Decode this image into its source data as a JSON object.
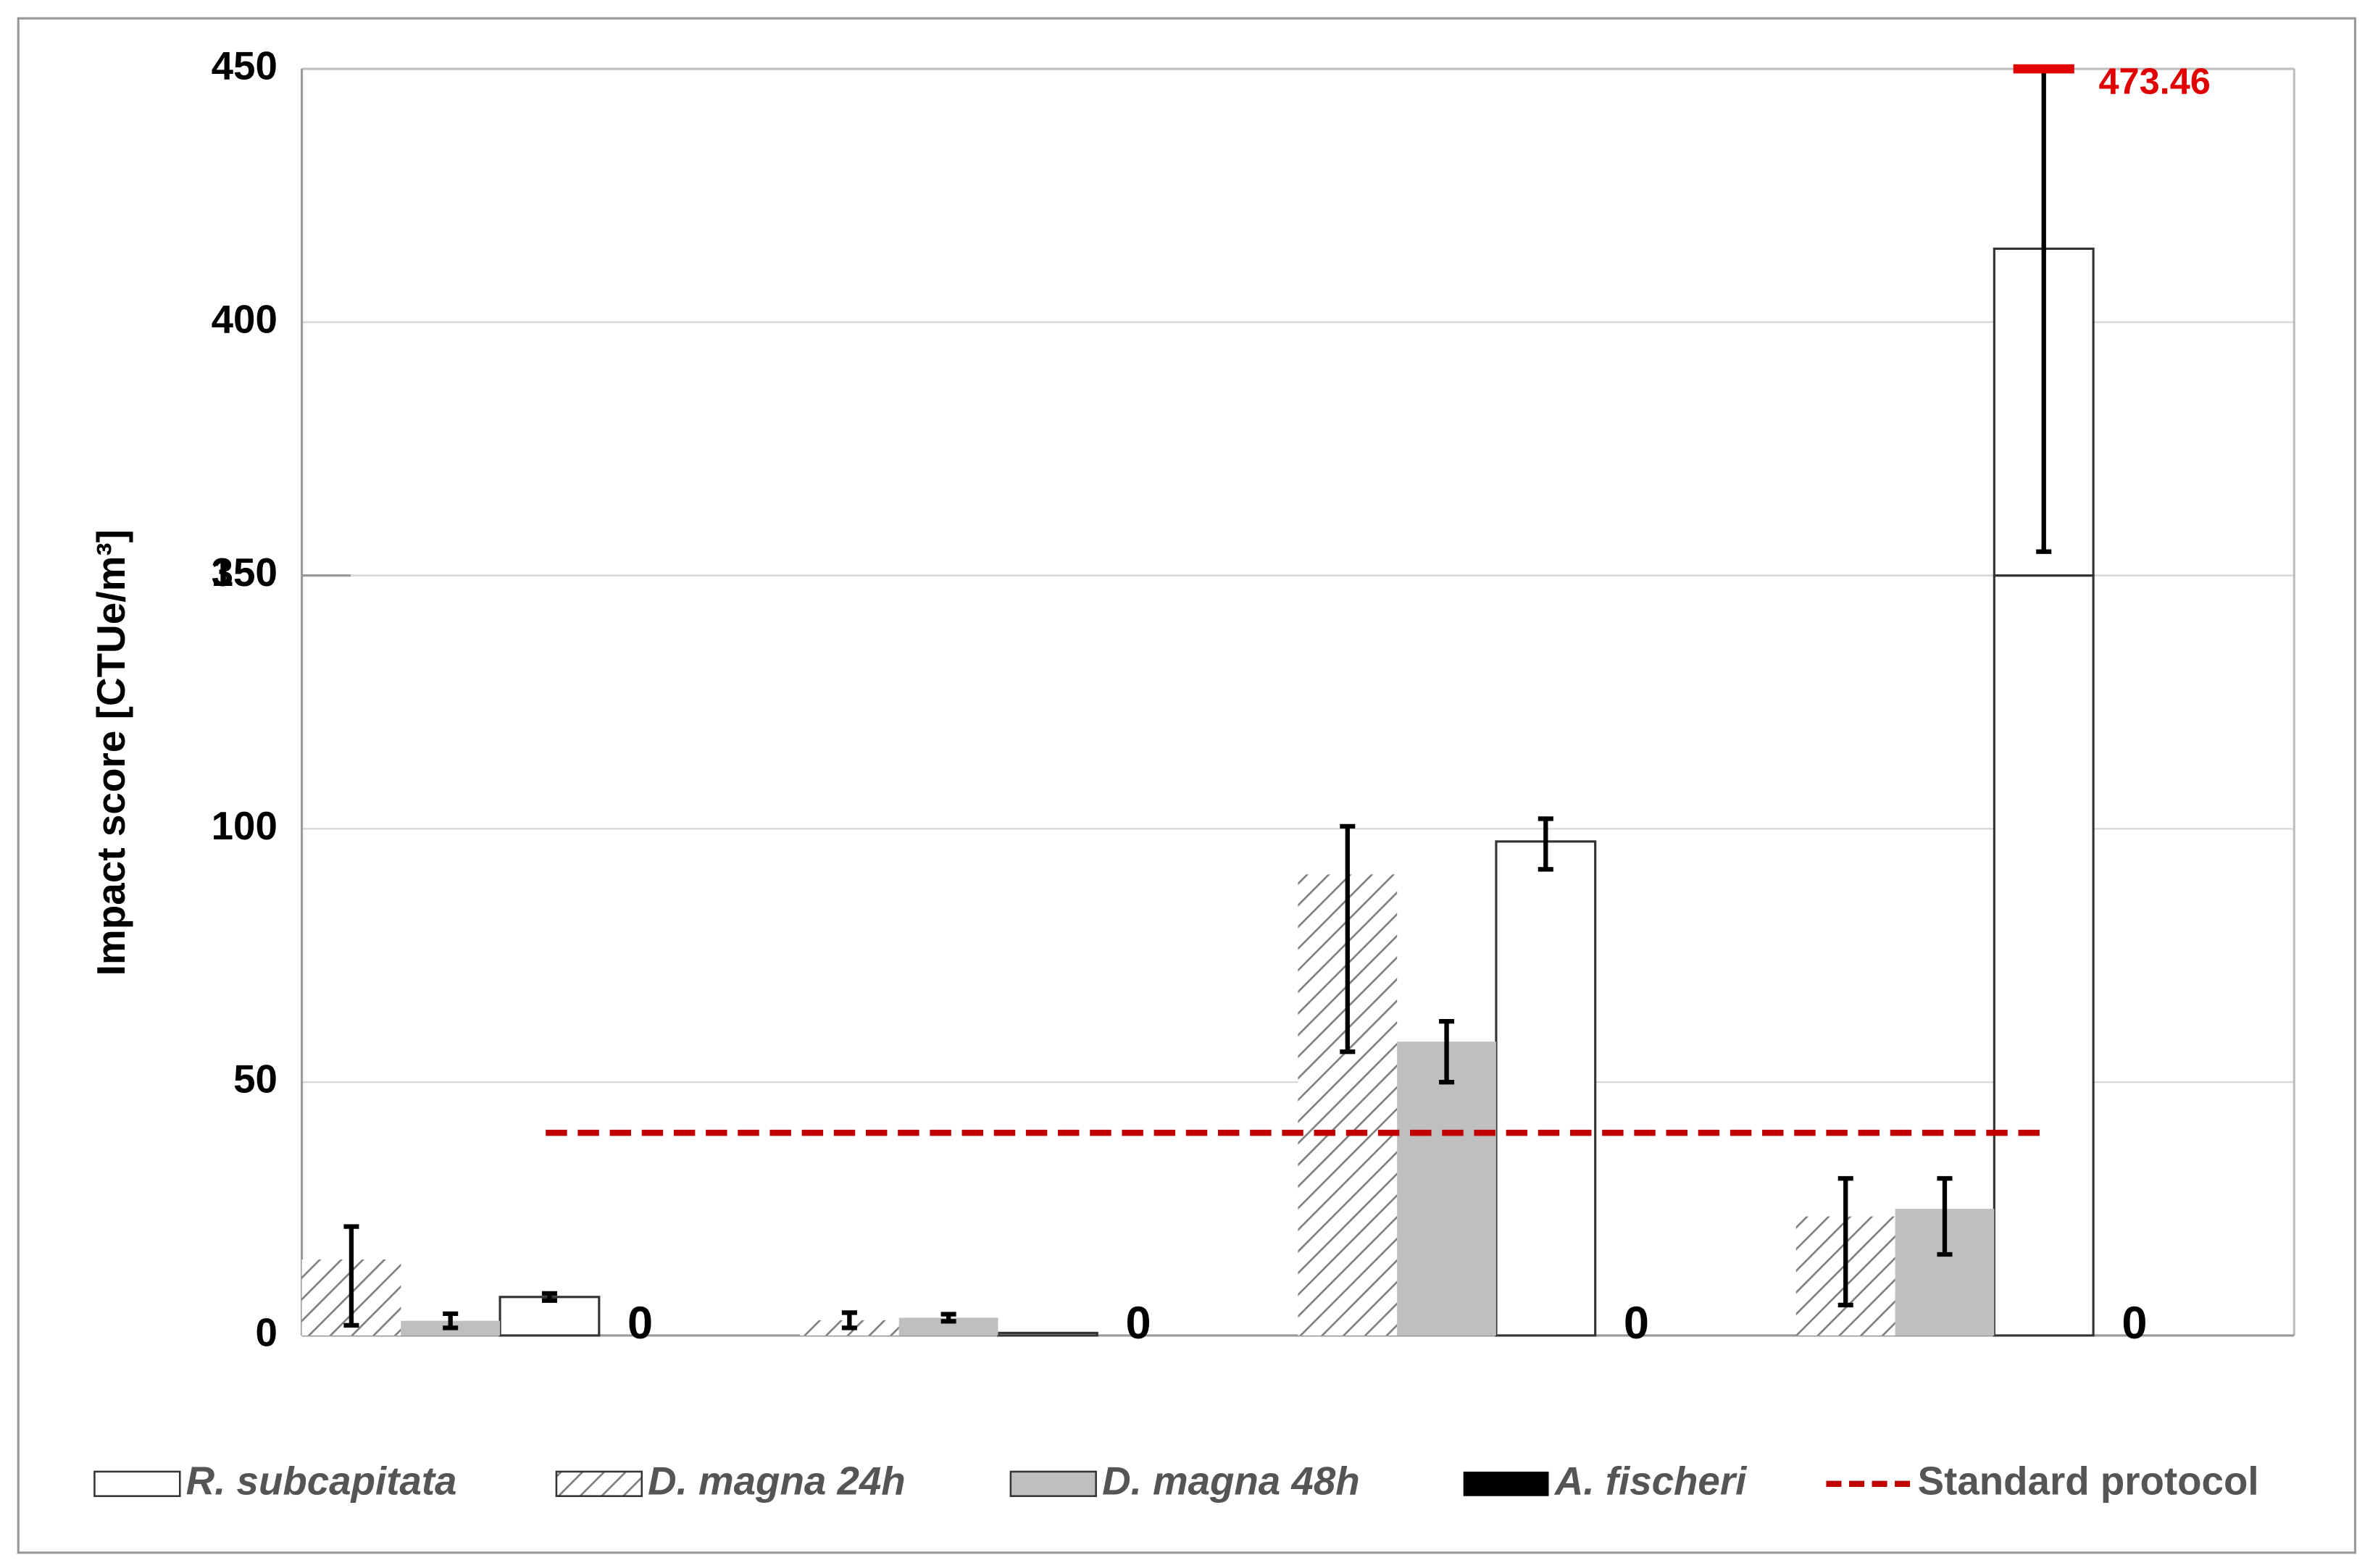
{
  "chart_data": {
    "type": "bar",
    "ylabel": "Impact score [CTUe/m³]",
    "categories": [
      null,
      null,
      null,
      null
    ],
    "ylim": [
      0,
      450
    ],
    "ybreak": [
      150,
      350
    ],
    "yticks": [
      0,
      50,
      100,
      150,
      350,
      400,
      450
    ],
    "grid": true,
    "legend": "bottom",
    "series": [
      {
        "name": "R. subcapitata",
        "color": "#ffffff",
        "values": [
          7.6,
          0.5,
          97.5,
          414.5
        ],
        "lows": [
          6.9,
          null,
          92,
          354.7
        ],
        "highs": [
          8.3,
          null,
          102,
          473.46
        ]
      },
      {
        "name": "D. magna 24h",
        "color": "#ffffff",
        "hatch": "#7f7f7f",
        "values": [
          15,
          3,
          91,
          23.5
        ],
        "lows": [
          2,
          1.5,
          56,
          6
        ],
        "highs": [
          21.5,
          4.5,
          100.5,
          31
        ]
      },
      {
        "name": "D. magna 48h",
        "color": "#bfbfbf",
        "values": [
          2.9,
          3.5,
          58,
          25
        ],
        "lows": [
          1.5,
          2.8,
          50,
          16
        ],
        "highs": [
          4.3,
          4.2,
          62,
          31
        ]
      },
      {
        "name": "A. fischeri",
        "color": "#000000",
        "values": [
          0,
          0,
          0,
          0
        ]
      }
    ],
    "reference_line": {
      "name": "Standard protocol",
      "color": "#c00000",
      "value": 40
    },
    "clipped_color": "#e00000"
  }
}
